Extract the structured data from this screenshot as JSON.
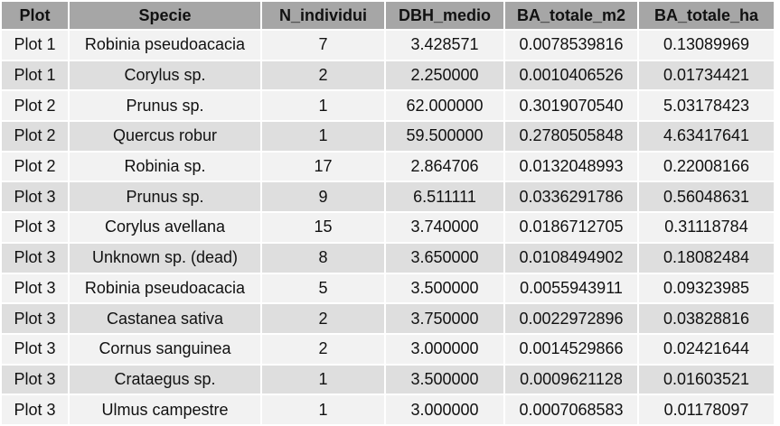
{
  "table": {
    "headers": [
      "Plot",
      "Specie",
      "N_individui",
      "DBH_medio",
      "BA_totale_m2",
      "BA_totale_ha"
    ],
    "rows": [
      [
        "Plot 1",
        "Robinia pseudoacacia",
        "7",
        "3.428571",
        "0.0078539816",
        "0.13089969"
      ],
      [
        "Plot 1",
        "Corylus sp.",
        "2",
        "2.250000",
        "0.0010406526",
        "0.01734421"
      ],
      [
        "Plot 2",
        "Prunus sp.",
        "1",
        "62.000000",
        "0.3019070540",
        "5.03178423"
      ],
      [
        "Plot 2",
        "Quercus robur",
        "1",
        "59.500000",
        "0.2780505848",
        "4.63417641"
      ],
      [
        "Plot 2",
        "Robinia sp.",
        "17",
        "2.864706",
        "0.0132048993",
        "0.22008166"
      ],
      [
        "Plot 3",
        "Prunus sp.",
        "9",
        "6.511111",
        "0.0336291786",
        "0.56048631"
      ],
      [
        "Plot 3",
        "Corylus avellana",
        "15",
        "3.740000",
        "0.0186712705",
        "0.31118784"
      ],
      [
        "Plot 3",
        "Unknown sp. (dead)",
        "8",
        "3.650000",
        "0.0108494902",
        "0.18082484"
      ],
      [
        "Plot 3",
        "Robinia pseudoacacia",
        "5",
        "3.500000",
        "0.0055943911",
        "0.09323985"
      ],
      [
        "Plot 3",
        "Castanea sativa",
        "2",
        "3.750000",
        "0.0022972896",
        "0.03828816"
      ],
      [
        "Plot 3",
        "Cornus sanguinea",
        "2",
        "3.000000",
        "0.0014529866",
        "0.02421644"
      ],
      [
        "Plot 3",
        "Crataegus sp.",
        "1",
        "3.500000",
        "0.0009621128",
        "0.01603521"
      ],
      [
        "Plot 3",
        "Ulmus campestre",
        "1",
        "3.000000",
        "0.0007068583",
        "0.01178097"
      ]
    ]
  },
  "colors": {
    "header_bg": "#a6a6a6",
    "row_light": "#f2f2f2",
    "row_dark": "#dedede",
    "text": "#111111"
  }
}
